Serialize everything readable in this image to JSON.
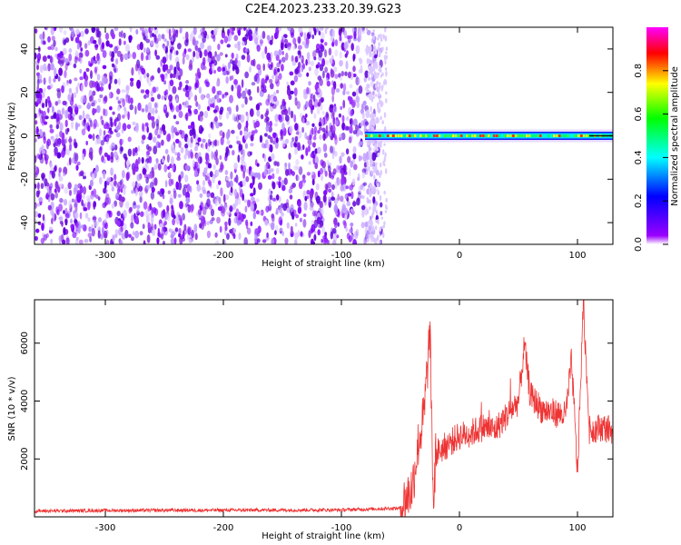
{
  "title": "C2E4.2023.233.20.39.G23",
  "chart_data": [
    {
      "type": "heatmap",
      "xlabel": "Height of straight line (km)",
      "ylabel": "Frequency (Hz)",
      "xlim": [
        -360,
        130
      ],
      "ylim": [
        -50,
        50
      ],
      "x_ticks": [
        -300,
        -200,
        -100,
        0,
        100
      ],
      "y_ticks": [
        -40,
        -20,
        0,
        20,
        40
      ],
      "noise_region_x": [
        -360,
        -80
      ],
      "signal_region_x": [
        -80,
        130
      ],
      "signal_center_frequency": 0,
      "colorbar": {
        "label": "Normalized spectral amplitude",
        "range": [
          0,
          1
        ],
        "ticks": [
          "0.0",
          "0.2",
          "0.4",
          "0.6",
          "0.8"
        ],
        "colors": [
          "#ffffff",
          "#9a00ff",
          "#0000ff",
          "#00ffff",
          "#00ff00",
          "#ffff00",
          "#ff0000",
          "#ff00ff"
        ]
      }
    },
    {
      "type": "line",
      "xlabel": "Height of straight line (km)",
      "ylabel": "SNR (10 * v/v)",
      "xlim": [
        -360,
        130
      ],
      "ylim": [
        0,
        7500
      ],
      "x_ticks": [
        -300,
        -200,
        -100,
        0,
        100
      ],
      "y_ticks": [
        2000,
        4000,
        6000
      ],
      "line_color": "#ee3333",
      "series": [
        {
          "x": [
            -360,
            -300,
            -200,
            -100,
            -50,
            -40,
            -35,
            -30,
            -25,
            -22,
            -20,
            -10,
            0,
            10,
            20,
            30,
            40,
            50,
            55,
            60,
            70,
            80,
            90,
            95,
            100,
            105,
            110,
            120,
            130
          ],
          "y": [
            200,
            220,
            230,
            240,
            300,
            1000,
            2500,
            3500,
            6400,
            300,
            2200,
            2500,
            2800,
            2900,
            3100,
            3000,
            3500,
            4000,
            5900,
            4200,
            3700,
            3600,
            3500,
            5400,
            1500,
            7400,
            3000,
            3100,
            3000
          ]
        }
      ]
    }
  ]
}
